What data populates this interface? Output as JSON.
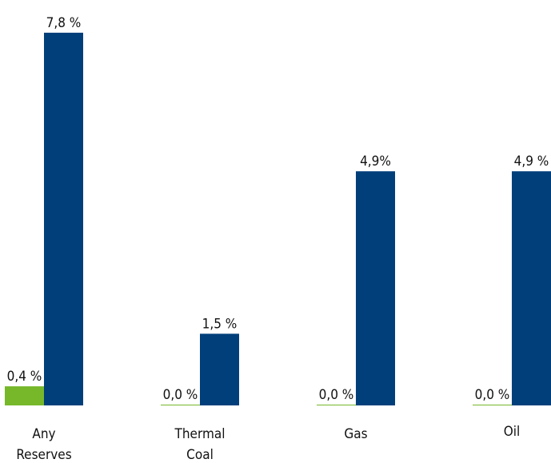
{
  "chart_data": {
    "type": "bar",
    "title": "",
    "xlabel": "",
    "ylabel": "",
    "ylim": [
      0,
      8.2
    ],
    "grid": false,
    "legend": "none",
    "categories": [
      [
        "Any",
        "Reserves"
      ],
      [
        "Thermal",
        "Coal"
      ],
      [
        "Gas"
      ],
      [
        "Oil"
      ]
    ],
    "series": [
      {
        "color": "#76b82a",
        "values": [
          0.4,
          0.0,
          0.0,
          0.0
        ],
        "labels": [
          "0,4 %",
          "0,0 %",
          "0,0 %",
          "0,0 %"
        ]
      },
      {
        "color": "#003f7a",
        "values": [
          7.8,
          1.5,
          4.9,
          4.9
        ],
        "labels": [
          "7,8 %",
          "1,5 %",
          "4,9%",
          "4,9 %"
        ]
      }
    ]
  }
}
